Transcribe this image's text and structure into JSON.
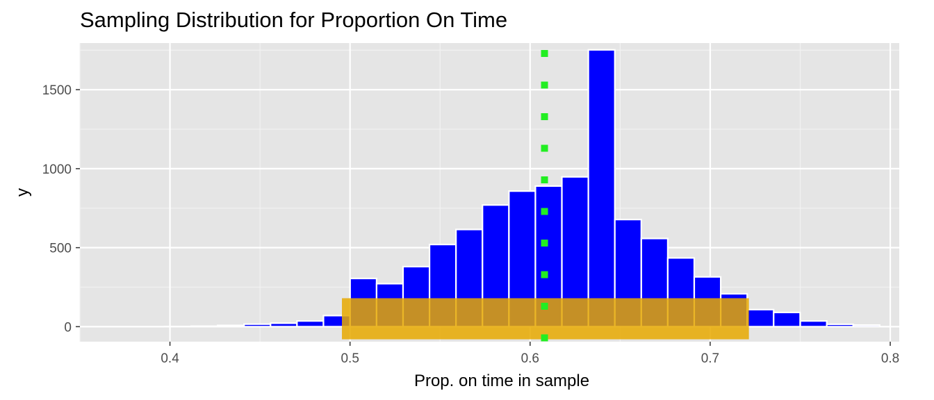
{
  "chart_data": {
    "type": "bar",
    "title": "Sampling Distribution for Proportion On Time",
    "xlabel": "Prop. on time in sample",
    "ylabel": "y",
    "xlim": [
      0.35,
      0.805
    ],
    "ylim": [
      -95,
      1795
    ],
    "x_ticks": [
      0.4,
      0.5,
      0.6,
      0.7,
      0.8
    ],
    "x_tick_labels": [
      "0.4",
      "0.5",
      "0.6",
      "0.7",
      "0.8"
    ],
    "y_ticks": [
      0,
      500,
      1000,
      1500
    ],
    "y_tick_labels": [
      "0",
      "500",
      "1000",
      "1500"
    ],
    "grid": true,
    "bin_width": 0.0147,
    "histogram": {
      "fill": "#0000ff",
      "outline": "#ffffff",
      "bins": [
        {
          "x": 0.3603,
          "count": 0
        },
        {
          "x": 0.375,
          "count": 0
        },
        {
          "x": 0.3897,
          "count": 0
        },
        {
          "x": 0.4044,
          "count": 1
        },
        {
          "x": 0.4191,
          "count": 3
        },
        {
          "x": 0.4338,
          "count": 8
        },
        {
          "x": 0.4485,
          "count": 16
        },
        {
          "x": 0.4632,
          "count": 22
        },
        {
          "x": 0.4779,
          "count": 36
        },
        {
          "x": 0.4926,
          "count": 70
        },
        {
          "x": 0.5074,
          "count": 305
        },
        {
          "x": 0.5221,
          "count": 272
        },
        {
          "x": 0.5368,
          "count": 380
        },
        {
          "x": 0.5515,
          "count": 520
        },
        {
          "x": 0.5662,
          "count": 615
        },
        {
          "x": 0.5809,
          "count": 770
        },
        {
          "x": 0.5956,
          "count": 858
        },
        {
          "x": 0.6103,
          "count": 890
        },
        {
          "x": 0.625,
          "count": 948
        },
        {
          "x": 0.6397,
          "count": 1752
        },
        {
          "x": 0.6544,
          "count": 678
        },
        {
          "x": 0.6691,
          "count": 558
        },
        {
          "x": 0.6838,
          "count": 435
        },
        {
          "x": 0.6985,
          "count": 315
        },
        {
          "x": 0.7132,
          "count": 208
        },
        {
          "x": 0.7279,
          "count": 108
        },
        {
          "x": 0.7426,
          "count": 90
        },
        {
          "x": 0.7574,
          "count": 36
        },
        {
          "x": 0.7721,
          "count": 15
        },
        {
          "x": 0.7868,
          "count": 10
        },
        {
          "x": 0.8015,
          "count": 0
        }
      ]
    },
    "interval": {
      "xmin": 0.4955,
      "xmax": 0.7215,
      "ymin": -80,
      "ymax": 180,
      "fill": "#e8a900",
      "opacity": 0.85
    },
    "reference_line": {
      "x": 0.608,
      "color": "#22ee22",
      "style": "dotted"
    }
  }
}
